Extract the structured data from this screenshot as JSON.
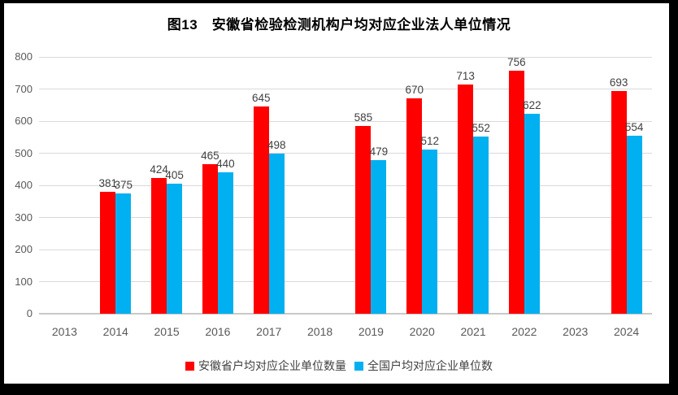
{
  "chart_data": {
    "type": "bar",
    "title": "图13　安徽省检验检测机构户均对应企业法人单位情况",
    "categories": [
      "2013",
      "2014",
      "2015",
      "2016",
      "2017",
      "2018",
      "2019",
      "2020",
      "2021",
      "2022",
      "2023",
      "2024"
    ],
    "series": [
      {
        "name": "安徽省户均对应企业单位数量",
        "color": "#FF0000",
        "values": [
          null,
          381,
          424,
          465,
          645,
          null,
          585,
          670,
          713,
          756,
          null,
          693
        ]
      },
      {
        "name": "全国户均对应企业单位数",
        "color": "#00B0F0",
        "values": [
          null,
          375,
          405,
          440,
          498,
          null,
          479,
          512,
          552,
          622,
          null,
          554
        ]
      }
    ],
    "ylim": [
      0,
      800
    ],
    "ytick_step": 100,
    "yticks": [
      "0",
      "100",
      "200",
      "300",
      "400",
      "500",
      "600",
      "700",
      "800"
    ],
    "grid": true,
    "legend_position": "bottom"
  },
  "colors": {
    "gridline": "#D9D9D9",
    "axis_line": "#C9C9C9",
    "tick_text": "#595959",
    "data_label_text": "#404040",
    "title_text": "#000000",
    "frame": "#000000",
    "background": "#FFFFFF"
  }
}
